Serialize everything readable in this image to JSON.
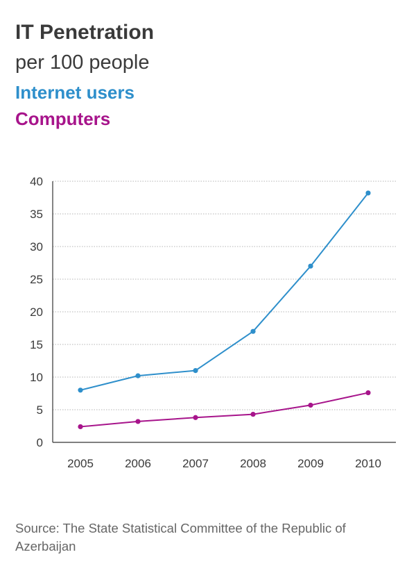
{
  "header": {
    "title": "IT Penetration",
    "subtitle": "per 100 people"
  },
  "source": "Source: The State Statistical Committee of the Republic of Azerbaijan",
  "colors": {
    "internet": "#2e8fcb",
    "computers": "#a7148b",
    "text": "#3a3a3a",
    "grid": "#b5b5b5",
    "axis": "#333333"
  },
  "chart_data": {
    "type": "line",
    "title": "IT Penetration",
    "subtitle": "per 100 people",
    "x": [
      2005,
      2006,
      2007,
      2008,
      2009,
      2010
    ],
    "series": [
      {
        "name": "Internet users",
        "color": "#2e8fcb",
        "values": [
          8,
          10.2,
          11,
          17,
          27,
          38.2
        ]
      },
      {
        "name": "Computers",
        "color": "#a7148b",
        "values": [
          2.4,
          3.2,
          3.8,
          4.3,
          5.7,
          7.6
        ]
      }
    ],
    "ylim": [
      0,
      40
    ],
    "yticks": [
      0,
      5,
      10,
      15,
      20,
      25,
      30,
      35,
      40
    ],
    "grid": true,
    "legend": "top-left"
  }
}
